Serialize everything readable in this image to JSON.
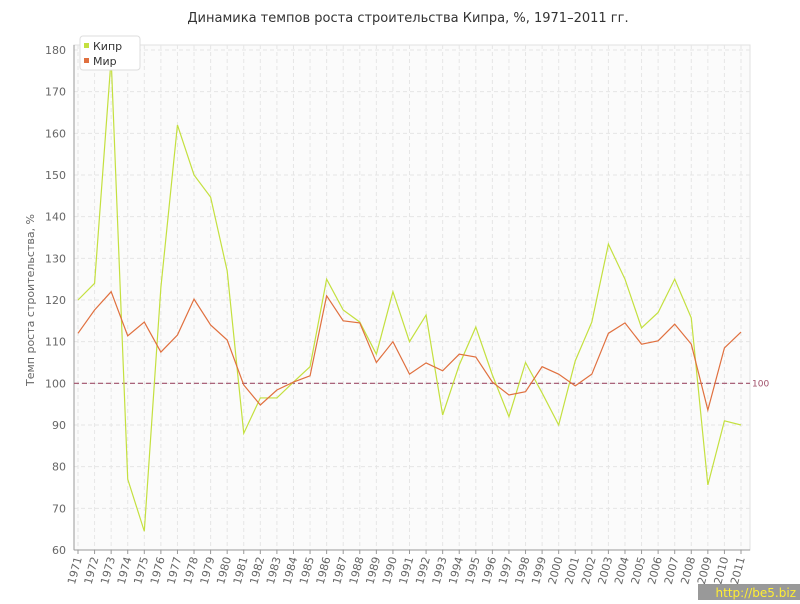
{
  "chart_data": {
    "type": "line",
    "title": "Динамика темпов роста строительства Кипра, %, 1971–2011 гг.",
    "y_label": "Темп роста строительства, %",
    "categories": [
      "1971",
      "1972",
      "1973",
      "1974",
      "1975",
      "1976",
      "1977",
      "1978",
      "1979",
      "1980",
      "1981",
      "1982",
      "1983",
      "1984",
      "1985",
      "1986",
      "1987",
      "1988",
      "1989",
      "1990",
      "1991",
      "1992",
      "1993",
      "1994",
      "1995",
      "1996",
      "1997",
      "1998",
      "1999",
      "2000",
      "2001",
      "2002",
      "2003",
      "2004",
      "2005",
      "2006",
      "2007",
      "2008",
      "2009",
      "2010",
      "2011"
    ],
    "series": [
      {
        "name": "Кипр",
        "color": "#c4e03f",
        "values": [
          120,
          124,
          178,
          77,
          64.5,
          123,
          162,
          150,
          144.7,
          127,
          88,
          96.5,
          96.5,
          100.3,
          104,
          125,
          117.6,
          114.7,
          107,
          122,
          110,
          116.4,
          92.4,
          104.4,
          113.5,
          102,
          92,
          105,
          97.7,
          90,
          105.4,
          114.7,
          133.4,
          125,
          113.3,
          117,
          125,
          115.7,
          75.6,
          91,
          90
        ]
      },
      {
        "name": "Мир",
        "color": "#e0703f",
        "values": [
          112,
          117.6,
          122,
          111.4,
          114.7,
          107.5,
          111.6,
          120.2,
          114,
          110.4,
          99.6,
          94.8,
          98.4,
          100.3,
          101.8,
          121,
          115,
          114.5,
          105,
          110,
          102.2,
          104.9,
          103,
          107,
          106.3,
          100.3,
          97.2,
          98,
          104,
          102.2,
          99.4,
          102.2,
          112,
          114.5,
          109.4,
          110.2,
          114.2,
          109.4,
          93.6,
          108.5,
          112.3
        ]
      }
    ],
    "ylim": [
      60,
      180
    ],
    "yticks": [
      60,
      70,
      80,
      90,
      100,
      110,
      120,
      130,
      140,
      150,
      160,
      170,
      180
    ],
    "grid": true,
    "legend": "top-left",
    "reference_line": {
      "value": 100,
      "label": "100",
      "color": "#a0506a"
    },
    "watermark": "http://be5.biz"
  }
}
